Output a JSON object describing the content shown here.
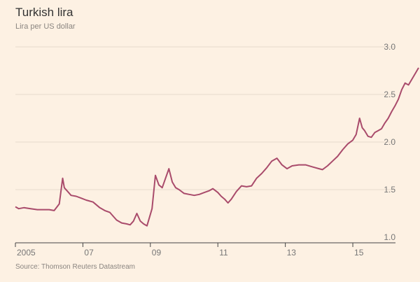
{
  "header": {
    "title": "Turkish lira",
    "subtitle": "Lira per US dollar"
  },
  "footer": {
    "source": "Source: Thomson Reuters Datastream"
  },
  "colors": {
    "background": "#fdf1e3",
    "line": "#a94b6b",
    "grid": "#e7dbcd",
    "axis": "#444444",
    "text": "#777777"
  },
  "chart_data": {
    "type": "line",
    "title": "Turkish lira",
    "subtitle": "Lira per US dollar",
    "xlabel": "",
    "ylabel": "",
    "xlim": [
      2005.0,
      2015.85
    ],
    "ylim": [
      1.0,
      3.0
    ],
    "x_ticks": [
      2005,
      2007,
      2009,
      2011,
      2013,
      2015
    ],
    "x_tick_labels": [
      "2005",
      "07",
      "09",
      "11",
      "13",
      "15"
    ],
    "y_ticks": [
      1.0,
      1.5,
      2.0,
      2.5,
      3.0
    ],
    "y_tick_labels": [
      "1.0",
      "1.5",
      "2.0",
      "2.5",
      "3.0"
    ],
    "grid": "horizontal",
    "series": [
      {
        "values": [
          [
            2005.0,
            1.32
          ],
          [
            2005.1,
            1.3
          ],
          [
            2005.25,
            1.31
          ],
          [
            2005.45,
            1.3
          ],
          [
            2005.65,
            1.29
          ],
          [
            2005.85,
            1.29
          ],
          [
            2006.0,
            1.29
          ],
          [
            2006.15,
            1.28
          ],
          [
            2006.3,
            1.35
          ],
          [
            2006.4,
            1.62
          ],
          [
            2006.45,
            1.52
          ],
          [
            2006.55,
            1.48
          ],
          [
            2006.65,
            1.44
          ],
          [
            2006.8,
            1.43
          ],
          [
            2006.95,
            1.41
          ],
          [
            2007.1,
            1.39
          ],
          [
            2007.3,
            1.37
          ],
          [
            2007.5,
            1.31
          ],
          [
            2007.65,
            1.28
          ],
          [
            2007.8,
            1.26
          ],
          [
            2007.9,
            1.22
          ],
          [
            2008.0,
            1.18
          ],
          [
            2008.15,
            1.15
          ],
          [
            2008.3,
            1.14
          ],
          [
            2008.4,
            1.13
          ],
          [
            2008.5,
            1.17
          ],
          [
            2008.6,
            1.25
          ],
          [
            2008.7,
            1.17
          ],
          [
            2008.8,
            1.14
          ],
          [
            2008.9,
            1.12
          ],
          [
            2009.05,
            1.3
          ],
          [
            2009.15,
            1.65
          ],
          [
            2009.25,
            1.55
          ],
          [
            2009.35,
            1.52
          ],
          [
            2009.45,
            1.62
          ],
          [
            2009.55,
            1.72
          ],
          [
            2009.65,
            1.58
          ],
          [
            2009.75,
            1.52
          ],
          [
            2009.85,
            1.5
          ],
          [
            2010.0,
            1.46
          ],
          [
            2010.15,
            1.45
          ],
          [
            2010.3,
            1.44
          ],
          [
            2010.45,
            1.45
          ],
          [
            2010.6,
            1.47
          ],
          [
            2010.75,
            1.49
          ],
          [
            2010.85,
            1.51
          ],
          [
            2011.0,
            1.47
          ],
          [
            2011.1,
            1.43
          ],
          [
            2011.2,
            1.4
          ],
          [
            2011.3,
            1.36
          ],
          [
            2011.4,
            1.4
          ],
          [
            2011.55,
            1.48
          ],
          [
            2011.7,
            1.54
          ],
          [
            2011.85,
            1.53
          ],
          [
            2012.0,
            1.54
          ],
          [
            2012.15,
            1.62
          ],
          [
            2012.3,
            1.67
          ],
          [
            2012.45,
            1.73
          ],
          [
            2012.6,
            1.8
          ],
          [
            2012.75,
            1.83
          ],
          [
            2012.9,
            1.76
          ],
          [
            2013.05,
            1.72
          ],
          [
            2013.2,
            1.75
          ],
          [
            2013.4,
            1.76
          ],
          [
            2013.6,
            1.76
          ],
          [
            2013.8,
            1.74
          ],
          [
            2014.0,
            1.72
          ],
          [
            2014.1,
            1.71
          ],
          [
            2014.25,
            1.75
          ],
          [
            2014.4,
            1.8
          ],
          [
            2014.55,
            1.85
          ],
          [
            2014.7,
            1.92
          ],
          [
            2014.85,
            1.98
          ],
          [
            2015.0,
            2.02
          ],
          [
            2015.1,
            2.08
          ],
          [
            2015.2,
            2.25
          ],
          [
            2015.28,
            2.15
          ],
          [
            2015.35,
            2.12
          ],
          [
            2015.45,
            2.06
          ],
          [
            2015.55,
            2.05
          ],
          [
            2015.65,
            2.1
          ],
          [
            2015.75,
            2.12
          ],
          [
            2015.85,
            2.14
          ],
          [
            2015.95,
            2.2
          ],
          [
            2016.05,
            2.25
          ],
          [
            2016.15,
            2.32
          ],
          [
            2016.25,
            2.38
          ],
          [
            2016.35,
            2.45
          ],
          [
            2016.45,
            2.55
          ],
          [
            2016.55,
            2.62
          ],
          [
            2016.65,
            2.6
          ],
          [
            2016.75,
            2.66
          ],
          [
            2016.85,
            2.72
          ],
          [
            2016.95,
            2.78
          ]
        ]
      }
    ]
  }
}
